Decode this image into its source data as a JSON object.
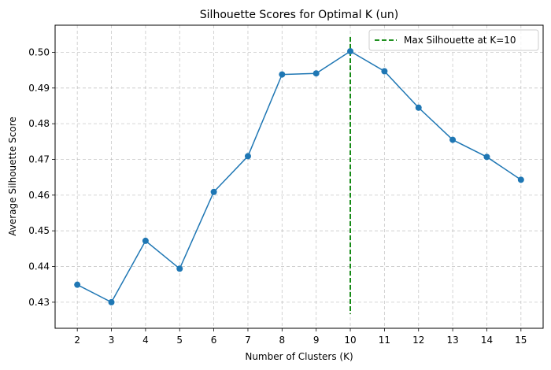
{
  "chart_data": {
    "type": "line",
    "title": "Silhouette Scores for Optimal K (un)",
    "xlabel": "Number of Clusters (K)",
    "ylabel": "Average Silhouette Score",
    "x": [
      2,
      3,
      4,
      5,
      6,
      7,
      8,
      9,
      10,
      11,
      12,
      13,
      14,
      15
    ],
    "series": [
      {
        "values": [
          0.4349,
          0.43,
          0.4472,
          0.4394,
          0.4609,
          0.4709,
          0.4938,
          0.4941,
          0.5003,
          0.4947,
          0.4845,
          0.4755,
          0.4707,
          0.4643
        ],
        "color": "#1f77b4",
        "marker": "circle"
      }
    ],
    "vline": {
      "x": 10,
      "color": "#008000",
      "style": "dashed",
      "legend": "Max Silhouette at K=10"
    },
    "xticks": [
      "2",
      "3",
      "4",
      "5",
      "6",
      "7",
      "8",
      "9",
      "10",
      "11",
      "12",
      "13",
      "14",
      "15"
    ],
    "yticks": [
      "0.43",
      "0.44",
      "0.45",
      "0.46",
      "0.47",
      "0.48",
      "0.49",
      "0.50"
    ],
    "ytick_values": [
      0.43,
      0.44,
      0.45,
      0.46,
      0.47,
      0.48,
      0.49,
      0.5
    ],
    "xlim": [
      1.35,
      15.65
    ],
    "ylim": [
      0.4227,
      0.5076
    ],
    "grid": true,
    "legend_position": "top-right"
  }
}
